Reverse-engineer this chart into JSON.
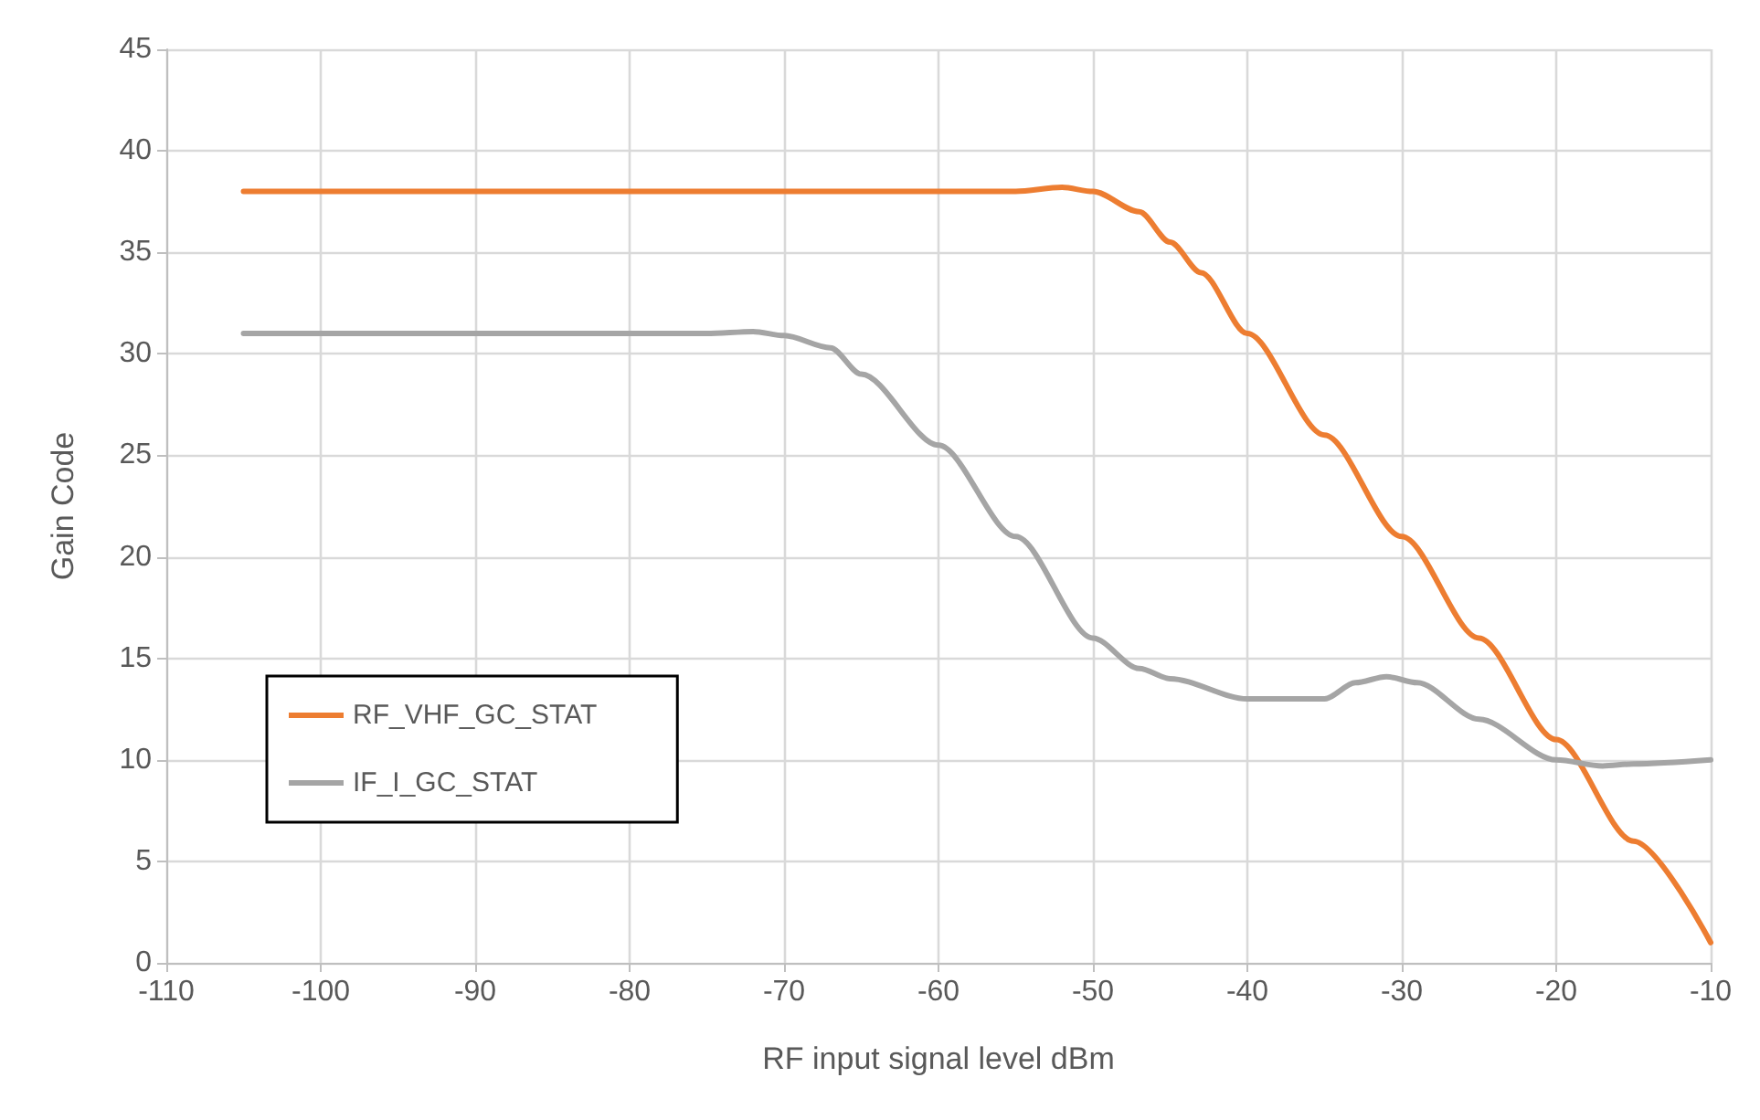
{
  "chart_data": {
    "type": "line",
    "xlabel": "RF input signal level dBm",
    "ylabel": "Gain Code",
    "xlim": [
      -110,
      -10
    ],
    "xticks": [
      -110,
      -100,
      -90,
      -80,
      -70,
      -60,
      -50,
      -40,
      -30,
      -20,
      -10
    ],
    "ylim": [
      0,
      45
    ],
    "yticks": [
      0,
      5,
      10,
      15,
      20,
      25,
      30,
      35,
      40,
      45
    ],
    "grid": true,
    "legend": "bottom left",
    "marker": "none",
    "line_style": "solid",
    "series": [
      {
        "name": "RF_VHF_GC_STAT",
        "color": "#ed7d31",
        "x": [
          -105,
          -90,
          -75,
          -60,
          -55,
          -52,
          -50,
          -47,
          -45,
          -43,
          -40,
          -35,
          -30,
          -25,
          -20,
          -15,
          -10
        ],
        "values": [
          38,
          38,
          38,
          38,
          38,
          38.2,
          38,
          37,
          35.5,
          34,
          31,
          26,
          21,
          16,
          11,
          6,
          1
        ]
      },
      {
        "name": "IF_I_GC_STAT",
        "color": "#a5a5a5",
        "x": [
          -105,
          -90,
          -75,
          -72,
          -70,
          -67,
          -65,
          -60,
          -55,
          -50,
          -47,
          -45,
          -40,
          -35,
          -33,
          -31,
          -29,
          -25,
          -20,
          -17,
          -15,
          -10
        ],
        "values": [
          31,
          31,
          31,
          31.1,
          30.9,
          30.3,
          29,
          25.5,
          21,
          16,
          14.5,
          14,
          13,
          13,
          13.8,
          14.1,
          13.8,
          12,
          10,
          9.7,
          9.8,
          10
        ]
      }
    ]
  }
}
